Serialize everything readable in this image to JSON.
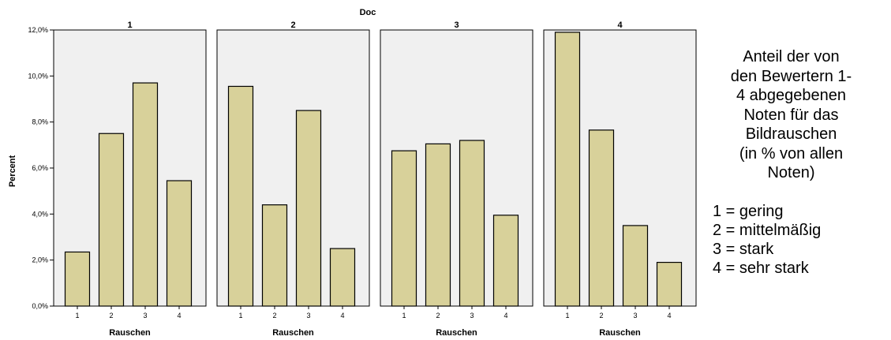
{
  "chart_data": {
    "type": "bar",
    "title": "Doc",
    "xlabel": "Rauschen",
    "ylabel": "Percent",
    "ylim": [
      0,
      12
    ],
    "y_ticks": [
      "0,0%",
      "2,0%",
      "4,0%",
      "6,0%",
      "8,0%",
      "10,0%",
      "12,0%"
    ],
    "grid": false,
    "bar_color": "#d8d19a",
    "panel_background": "#f0f0f0",
    "categories": [
      "1",
      "2",
      "3",
      "4"
    ],
    "panels": [
      {
        "name": "1",
        "values": [
          2.35,
          7.5,
          9.7,
          5.45
        ]
      },
      {
        "name": "2",
        "values": [
          9.55,
          4.4,
          8.5,
          2.5
        ]
      },
      {
        "name": "3",
        "values": [
          6.75,
          7.05,
          7.2,
          3.95
        ]
      },
      {
        "name": "4",
        "values": [
          11.9,
          7.65,
          3.5,
          1.9
        ]
      }
    ]
  },
  "annotation": {
    "description_lines": [
      "Anteil der von",
      "den Bewertern 1-",
      "4 abgegebenen",
      "Noten für das",
      "Bildrauschen",
      "(in % von allen",
      "Noten)"
    ],
    "legend": [
      "1 = gering",
      "2 = mittelmäßig",
      "3 = stark",
      "4 = sehr stark"
    ]
  }
}
